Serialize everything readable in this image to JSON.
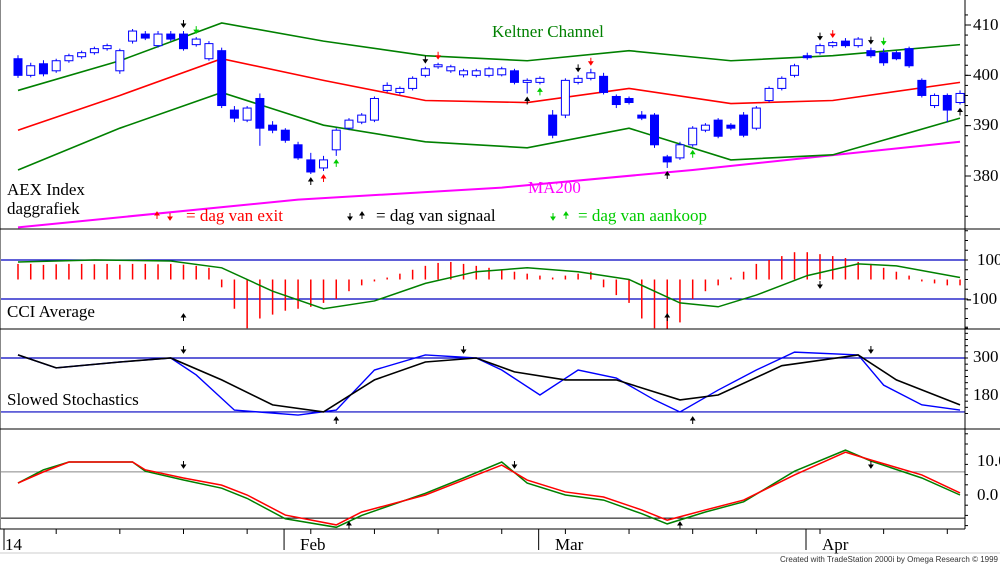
{
  "chart_data": {
    "type": "candlestick",
    "title": "AEX Index daggrafiek",
    "x_ticks": [
      {
        "index": 0,
        "label": "14"
      },
      {
        "index": 22,
        "label": "Feb"
      },
      {
        "index": 42,
        "label": "Mar"
      },
      {
        "index": 63,
        "label": "Apr"
      }
    ],
    "price_panel": {
      "title": "AEX Index",
      "subtitle": "daggrafiek",
      "ylim": [
        366,
        415
      ],
      "y_ticks": [
        "410",
        "400",
        "390",
        "380"
      ],
      "y_tick_values": [
        410,
        400,
        390,
        380
      ],
      "keltner_label": "Keltner Channel",
      "ma_label": "MA200",
      "legend": {
        "exit": "= dag van exit",
        "signal": "= dag van signaal",
        "buy": "= dag van aankoop"
      },
      "ohlc": [
        [
          403.3,
          404,
          399.5,
          400
        ],
        [
          400,
          402.5,
          399.6,
          401.9
        ],
        [
          402.3,
          403,
          399.8,
          400.3
        ],
        [
          400.9,
          403.3,
          400.5,
          402.9
        ],
        [
          402.9,
          404.3,
          402.5,
          403.9
        ],
        [
          403.7,
          404.9,
          403.3,
          404.5
        ],
        [
          404.5,
          405.7,
          404.1,
          405.3
        ],
        [
          405.3,
          406.3,
          404.9,
          405.9
        ],
        [
          400.9,
          405.3,
          400.3,
          404.9
        ],
        [
          406.8,
          409.2,
          406.3,
          408.8
        ],
        [
          408.2,
          408.8,
          407,
          407.4
        ],
        [
          405.9,
          408.8,
          405.5,
          408.2
        ],
        [
          408.2,
          408.8,
          406.8,
          407.2
        ],
        [
          408.2,
          408.8,
          404.9,
          405.3
        ],
        [
          406.1,
          407.6,
          405.7,
          407.2
        ],
        [
          403.3,
          406.8,
          402.9,
          406.3
        ],
        [
          404.9,
          405.5,
          393.5,
          394
        ],
        [
          393.1,
          393.9,
          390.7,
          391.5
        ],
        [
          391.1,
          393.9,
          390.7,
          393.5
        ],
        [
          395.4,
          396.4,
          386,
          389.5
        ],
        [
          390.1,
          390.9,
          388.5,
          389.1
        ],
        [
          389.1,
          389.5,
          386.6,
          387.1
        ],
        [
          386.2,
          386.8,
          383.2,
          383.6
        ],
        [
          383.2,
          384.6,
          380.4,
          380.8
        ],
        [
          381.6,
          384,
          381,
          383.2
        ],
        [
          385.2,
          389.5,
          384,
          389.1
        ],
        [
          389.5,
          391.5,
          389.1,
          391.1
        ],
        [
          390.7,
          392.5,
          390.3,
          392.1
        ],
        [
          391.1,
          395.8,
          390.7,
          395.4
        ],
        [
          397,
          398.6,
          396.6,
          398
        ],
        [
          396.6,
          397.8,
          396.2,
          397.4
        ],
        [
          397.4,
          399.8,
          397,
          399.4
        ],
        [
          400,
          401.7,
          399.6,
          401.3
        ],
        [
          401.7,
          402.5,
          401.3,
          402.1
        ],
        [
          400.9,
          402.1,
          400.5,
          401.7
        ],
        [
          400.1,
          401.3,
          399.6,
          400.9
        ],
        [
          400,
          401.3,
          399.6,
          400.9
        ],
        [
          400,
          401.7,
          399.6,
          401.3
        ],
        [
          400.1,
          401.7,
          399.8,
          401.3
        ],
        [
          400.9,
          401.3,
          398.2,
          398.6
        ],
        [
          398.6,
          399.4,
          396.4,
          399
        ],
        [
          398.6,
          399.8,
          398.2,
          399.4
        ],
        [
          392.1,
          393.1,
          387.5,
          388.1
        ],
        [
          392.1,
          399.4,
          391.5,
          399
        ],
        [
          398.6,
          400,
          398.2,
          399.4
        ],
        [
          399.4,
          401.3,
          399,
          400.5
        ],
        [
          399.8,
          400.5,
          396.2,
          396.6
        ],
        [
          395.8,
          396.2,
          393.5,
          394.2
        ],
        [
          395.4,
          395.8,
          394.2,
          394.6
        ],
        [
          392.1,
          392.9,
          391.1,
          391.5
        ],
        [
          392.1,
          392.5,
          385.6,
          386.2
        ],
        [
          383.8,
          384.2,
          381.6,
          382.8
        ],
        [
          383.6,
          386.8,
          383.2,
          386.2
        ],
        [
          386.2,
          389.9,
          385.8,
          389.5
        ],
        [
          389.1,
          390.5,
          388.7,
          390.1
        ],
        [
          391.1,
          391.5,
          387.5,
          387.9
        ],
        [
          390.1,
          390.5,
          389.1,
          389.5
        ],
        [
          392.1,
          392.7,
          387.7,
          388.1
        ],
        [
          389.5,
          393.9,
          389.1,
          393.5
        ],
        [
          395,
          397.8,
          394.6,
          397.4
        ],
        [
          397.4,
          399.8,
          397,
          399.4
        ],
        [
          400,
          402.3,
          399.6,
          401.9
        ],
        [
          403.9,
          404.5,
          403.1,
          403.5
        ],
        [
          404.5,
          406.3,
          404.1,
          405.9
        ],
        [
          405.9,
          406.8,
          405.5,
          406.5
        ],
        [
          406.8,
          407.4,
          405.5,
          405.9
        ],
        [
          405.9,
          407.6,
          405.5,
          407.2
        ],
        [
          404.9,
          405.5,
          403.5,
          403.9
        ],
        [
          404.5,
          405.3,
          401.9,
          402.5
        ],
        [
          404.5,
          404.9,
          403,
          403.3
        ],
        [
          405.3,
          405.7,
          401.5,
          401.9
        ],
        [
          399,
          399.4,
          395.6,
          396
        ],
        [
          394,
          396.4,
          393.5,
          396
        ],
        [
          396,
          396.4,
          390.7,
          393.1
        ],
        [
          394.6,
          397,
          394.2,
          396.4
        ]
      ],
      "keltner_mid": [
        [
          0,
          389.1
        ],
        [
          8,
          396
        ],
        [
          16,
          403.3
        ],
        [
          24,
          399
        ],
        [
          32,
          395
        ],
        [
          40,
          394.6
        ],
        [
          48,
          397.4
        ],
        [
          56,
          394.4
        ],
        [
          64,
          395
        ],
        [
          74,
          398.6
        ]
      ],
      "keltner_upper": [
        [
          0,
          397
        ],
        [
          8,
          402.9
        ],
        [
          16,
          410.4
        ],
        [
          24,
          406.8
        ],
        [
          32,
          403.9
        ],
        [
          40,
          402.9
        ],
        [
          48,
          404.9
        ],
        [
          56,
          402.9
        ],
        [
          64,
          403.9
        ],
        [
          74,
          406.1
        ]
      ],
      "keltner_lower": [
        [
          0,
          381.2
        ],
        [
          8,
          389.5
        ],
        [
          16,
          396.6
        ],
        [
          24,
          390.1
        ],
        [
          32,
          386.8
        ],
        [
          40,
          385.6
        ],
        [
          48,
          389.5
        ],
        [
          56,
          383.2
        ],
        [
          64,
          384.2
        ],
        [
          74,
          391.5
        ]
      ],
      "ma200": [
        [
          0,
          369.8
        ],
        [
          22,
          375.3
        ],
        [
          38,
          377.7
        ],
        [
          53,
          381.2
        ],
        [
          74,
          386.8
        ]
      ],
      "signals": [
        {
          "i": 13,
          "type": "signal",
          "dir": "down"
        },
        {
          "i": 14,
          "type": "buy",
          "dir": "down"
        },
        {
          "i": 23,
          "type": "signal",
          "dir": "up"
        },
        {
          "i": 24,
          "type": "exit",
          "dir": "up"
        },
        {
          "i": 25,
          "type": "buy",
          "dir": "up"
        },
        {
          "i": 32,
          "type": "signal",
          "dir": "down"
        },
        {
          "i": 33,
          "type": "exit",
          "dir": "down"
        },
        {
          "i": 40,
          "type": "signal",
          "dir": "up"
        },
        {
          "i": 41,
          "type": "buy",
          "dir": "up"
        },
        {
          "i": 44,
          "type": "signal",
          "dir": "down"
        },
        {
          "i": 45,
          "type": "exit",
          "dir": "down"
        },
        {
          "i": 51,
          "type": "signal",
          "dir": "up"
        },
        {
          "i": 53,
          "type": "buy",
          "dir": "up"
        },
        {
          "i": 63,
          "type": "signal",
          "dir": "down"
        },
        {
          "i": 64,
          "type": "exit",
          "dir": "down"
        },
        {
          "i": 67,
          "type": "signal",
          "dir": "down"
        },
        {
          "i": 68,
          "type": "buy",
          "dir": "down"
        },
        {
          "i": 74,
          "type": "signal",
          "dir": "up"
        }
      ]
    },
    "cci_panel": {
      "title": "CCI Average",
      "y_ticks": [
        "100",
        "-100"
      ],
      "y_tick_values": [
        100,
        -100
      ],
      "levels": [
        100,
        -100
      ],
      "bars": [
        80,
        80,
        75,
        78,
        80,
        80,
        78,
        80,
        76,
        80,
        80,
        78,
        80,
        76,
        70,
        60,
        -40,
        -150,
        -250,
        -200,
        -180,
        -160,
        -150,
        -140,
        -120,
        -100,
        -60,
        -30,
        -10,
        10,
        30,
        50,
        70,
        85,
        90,
        80,
        70,
        60,
        50,
        40,
        30,
        20,
        10,
        20,
        30,
        40,
        -40,
        -80,
        -120,
        -200,
        -250,
        -260,
        -220,
        -100,
        -60,
        -30,
        10,
        40,
        80,
        100,
        120,
        140,
        140,
        130,
        120,
        110,
        90,
        80,
        60,
        40,
        20,
        -10,
        -20,
        -30,
        -30
      ],
      "average": [
        [
          0,
          90
        ],
        [
          6,
          100
        ],
        [
          12,
          95
        ],
        [
          16,
          60
        ],
        [
          20,
          -60
        ],
        [
          24,
          -150
        ],
        [
          28,
          -110
        ],
        [
          32,
          -20
        ],
        [
          36,
          40
        ],
        [
          40,
          60
        ],
        [
          44,
          40
        ],
        [
          48,
          0
        ],
        [
          52,
          -120
        ],
        [
          55,
          -140
        ],
        [
          58,
          -80
        ],
        [
          62,
          20
        ],
        [
          66,
          80
        ],
        [
          69,
          70
        ],
        [
          74,
          10
        ]
      ],
      "signals": [
        {
          "i": 13,
          "dir": "up"
        },
        {
          "i": 51,
          "dir": "up"
        },
        {
          "i": 63,
          "dir": "down"
        }
      ]
    },
    "stoch_panel": {
      "title": "Slowed Stochastics",
      "y_ticks": [
        "300",
        "180"
      ],
      "y_tick_values": [
        300,
        180
      ],
      "levels": [
        300,
        125
      ],
      "fast": [
        [
          0,
          310
        ],
        [
          3,
          268
        ],
        [
          8,
          287
        ],
        [
          12,
          300
        ],
        [
          14,
          245
        ],
        [
          17,
          131
        ],
        [
          22,
          115
        ],
        [
          25,
          131
        ],
        [
          28,
          261
        ],
        [
          32,
          310
        ],
        [
          36,
          300
        ],
        [
          38,
          261
        ],
        [
          41,
          180
        ],
        [
          44,
          261
        ],
        [
          47,
          235
        ],
        [
          50,
          164
        ],
        [
          52,
          125
        ],
        [
          55,
          196
        ],
        [
          58,
          261
        ],
        [
          61,
          319
        ],
        [
          66,
          310
        ],
        [
          68,
          212
        ],
        [
          71,
          148
        ],
        [
          74,
          131
        ]
      ],
      "slow": [
        [
          0,
          310
        ],
        [
          3,
          268
        ],
        [
          8,
          287
        ],
        [
          12,
          300
        ],
        [
          16,
          229
        ],
        [
          20,
          148
        ],
        [
          24,
          125
        ],
        [
          28,
          229
        ],
        [
          32,
          287
        ],
        [
          36,
          300
        ],
        [
          39,
          255
        ],
        [
          43,
          229
        ],
        [
          47,
          229
        ],
        [
          52,
          164
        ],
        [
          55,
          180
        ],
        [
          60,
          275
        ],
        [
          66,
          310
        ],
        [
          69,
          229
        ],
        [
          74,
          148
        ]
      ],
      "signals": [
        {
          "i": 13,
          "dir": "down"
        },
        {
          "i": 35,
          "dir": "down"
        },
        {
          "i": 25,
          "dir": "up"
        },
        {
          "i": 53,
          "dir": "up"
        },
        {
          "i": 67,
          "dir": "down"
        }
      ]
    },
    "bottom_panel": {
      "y_ticks": [
        "10.0",
        "0.0"
      ],
      "y_tick_values": [
        10,
        0
      ],
      "levels": [
        6.8,
        -6.8
      ],
      "red": [
        [
          0,
          3.5
        ],
        [
          2,
          6.8
        ],
        [
          4,
          9.7
        ],
        [
          9,
          9.7
        ],
        [
          10,
          7.4
        ],
        [
          13,
          5
        ],
        [
          16,
          2.9
        ],
        [
          18,
          0
        ],
        [
          21,
          -5.9
        ],
        [
          25,
          -8.8
        ],
        [
          27,
          -5
        ],
        [
          32,
          0
        ],
        [
          35,
          4.4
        ],
        [
          38,
          8.8
        ],
        [
          40,
          4.4
        ],
        [
          43,
          0.9
        ],
        [
          46,
          -0.6
        ],
        [
          49,
          -4.4
        ],
        [
          51,
          -7.4
        ],
        [
          54,
          -4.4
        ],
        [
          57,
          -1.5
        ],
        [
          61,
          5.9
        ],
        [
          65,
          12.6
        ],
        [
          67,
          10.3
        ],
        [
          71,
          5.9
        ],
        [
          74,
          0.6
        ]
      ],
      "green": [
        [
          0,
          3.5
        ],
        [
          2,
          7.4
        ],
        [
          4,
          9.7
        ],
        [
          9,
          9.7
        ],
        [
          10,
          7
        ],
        [
          13,
          4.4
        ],
        [
          16,
          2
        ],
        [
          18,
          -1
        ],
        [
          21,
          -7
        ],
        [
          25,
          -9.5
        ],
        [
          27,
          -6
        ],
        [
          32,
          0.5
        ],
        [
          35,
          5
        ],
        [
          38,
          9.7
        ],
        [
          40,
          3.5
        ],
        [
          43,
          0
        ],
        [
          46,
          -1.5
        ],
        [
          49,
          -5.5
        ],
        [
          51,
          -8.5
        ],
        [
          54,
          -5
        ],
        [
          57,
          -2
        ],
        [
          61,
          7
        ],
        [
          65,
          13.2
        ],
        [
          67,
          10
        ],
        [
          71,
          5
        ],
        [
          74,
          0
        ]
      ],
      "signals": [
        {
          "i": 13,
          "dir": "down"
        },
        {
          "i": 39,
          "dir": "down"
        },
        {
          "i": 26,
          "dir": "up"
        },
        {
          "i": 52,
          "dir": "up"
        },
        {
          "i": 67,
          "dir": "down"
        }
      ]
    }
  },
  "colors": {
    "candle": "#0000ff",
    "keltner": "#008000",
    "mid": "#ff0000",
    "ma": "#ff00ff",
    "level": "#0000c0",
    "cci": "#ff0000",
    "exit": "#ff0000",
    "signal": "#000000",
    "buy": "#00cc00"
  },
  "footer": {
    "credit": "Created with TradeStation 2000i by Omega Research © 1999"
  }
}
